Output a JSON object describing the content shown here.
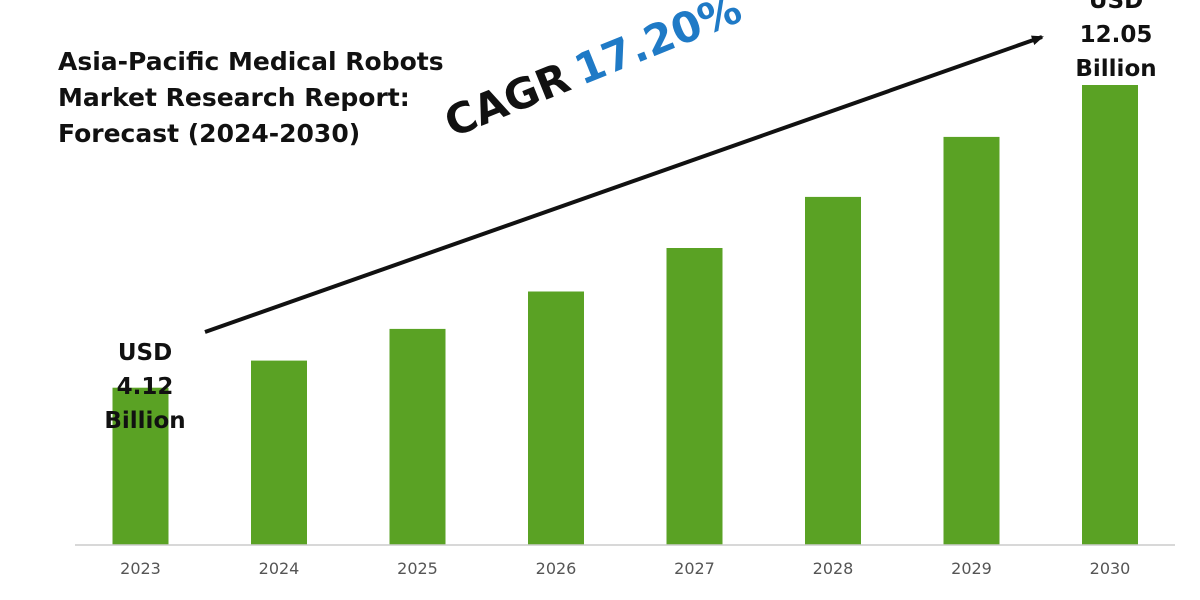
{
  "title_lines": [
    "Asia-Pacific Medical Robots",
    "Market Research Report:",
    "Forecast (2024-2030)"
  ],
  "cagr": {
    "label": "CAGR",
    "value": "17.20%"
  },
  "callouts": {
    "start": {
      "line1": "USD",
      "line2": "4.12",
      "line3": "Billion"
    },
    "end": {
      "line1": "USD",
      "line2": "12.05",
      "line3": "Billion"
    }
  },
  "colors": {
    "bar": "#5aa224",
    "cagr_value": "#1f7ac6",
    "text": "#111111",
    "axis": "#cccccc",
    "arrow": "#111111"
  },
  "chart_data": {
    "type": "bar",
    "title": "Asia-Pacific Medical Robots Market Research Report: Forecast (2024-2030)",
    "categories": [
      "2023",
      "2024",
      "2025",
      "2026",
      "2027",
      "2028",
      "2029",
      "2030"
    ],
    "series": [
      {
        "values": [
          4.12,
          4.83,
          5.66,
          6.64,
          7.78,
          9.12,
          10.69,
          12.05
        ]
      }
    ],
    "ylabel": "",
    "xlabel": "",
    "ylim": [
      0,
      12.05
    ],
    "grid": false,
    "legend": "none",
    "annotations": [
      "USD 4.12 Billion",
      "USD 12.05 Billion",
      "CAGR 17.20%"
    ]
  }
}
